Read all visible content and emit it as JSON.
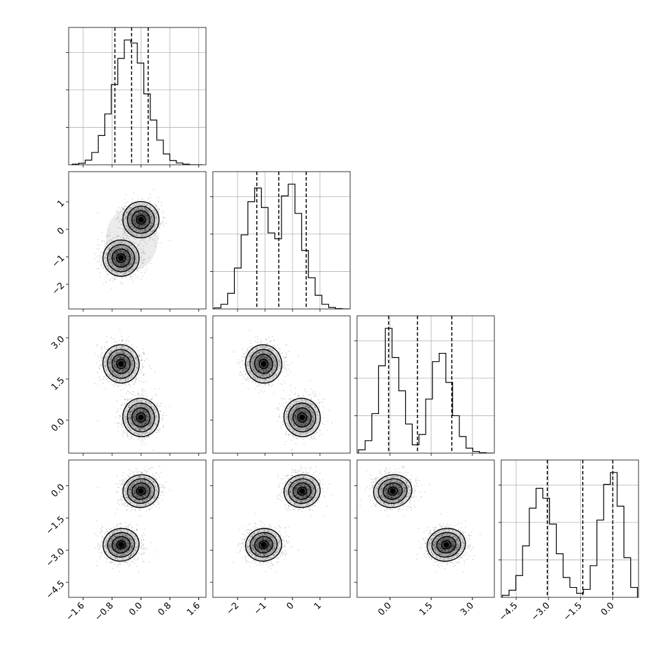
{
  "chart_data": {
    "type": "corner",
    "title": "",
    "parameters": [
      "",
      "",
      "",
      ""
    ],
    "ranges": [
      [
        -2.0,
        1.8
      ],
      [
        -2.9,
        2.1
      ],
      [
        -1.2,
        3.8
      ],
      [
        -5.2,
        1.2
      ]
    ],
    "ticks": [
      {
        "values": [
          -1.6,
          -0.8,
          0.0,
          0.8,
          1.6
        ],
        "labels": [
          "−1.6",
          "−0.8",
          "0.0",
          "0.8",
          "1.6"
        ]
      },
      {
        "values": [
          -2,
          -1,
          0,
          1
        ],
        "labels": [
          "−2",
          "−1",
          "0",
          "1"
        ]
      },
      {
        "values": [
          0.0,
          1.5,
          3.0
        ],
        "labels": [
          "0.0",
          "1.5",
          "3.0"
        ]
      },
      {
        "values": [
          -4.5,
          -3.0,
          -1.5,
          0.0
        ],
        "labels": [
          "−4.5",
          "−3.0",
          "−1.5",
          "0.0"
        ]
      }
    ],
    "quantiles": [
      [
        -0.72,
        -0.26,
        0.2
      ],
      [
        -1.3,
        -0.5,
        0.5
      ],
      [
        -0.05,
        1.0,
        2.25
      ],
      [
        -3.05,
        -1.4,
        0.0
      ]
    ],
    "histograms": [
      {
        "param": 0,
        "bin_edges_range": [
          -1.9,
          1.7
        ],
        "bins": 20,
        "counts": [
          2,
          5,
          15,
          40,
          95,
          165,
          260,
          345,
          405,
          395,
          330,
          230,
          145,
          80,
          35,
          14,
          6,
          2,
          0,
          0
        ]
      },
      {
        "param": 1,
        "bin_edges_range": [
          -2.85,
          2.05
        ],
        "bins": 20,
        "counts": [
          3,
          12,
          40,
          105,
          190,
          275,
          310,
          260,
          195,
          180,
          290,
          320,
          245,
          150,
          80,
          35,
          12,
          4,
          1,
          0
        ]
      },
      {
        "param": 2,
        "bin_edges_range": [
          -1.15,
          3.75
        ],
        "bins": 20,
        "counts": [
          8,
          30,
          95,
          210,
          300,
          230,
          150,
          70,
          20,
          45,
          130,
          220,
          240,
          170,
          90,
          40,
          12,
          4,
          1,
          0
        ]
      },
      {
        "param": 3,
        "bin_edges_range": [
          -5.15,
          1.15
        ],
        "bins": 20,
        "counts": [
          5,
          18,
          55,
          130,
          225,
          275,
          250,
          185,
          110,
          50,
          25,
          10,
          20,
          80,
          195,
          285,
          315,
          230,
          100,
          25
        ]
      }
    ],
    "joint_clusters": {
      "components": [
        {
          "mean": [
            -0.0,
            0.35,
            0.1,
            -0.25
          ],
          "sd": [
            0.25,
            0.33,
            0.35,
            0.38
          ],
          "weight": 0.5
        },
        {
          "mean": [
            -0.55,
            -1.05,
            2.05,
            -2.75
          ],
          "sd": [
            0.25,
            0.33,
            0.35,
            0.38
          ],
          "weight": 0.5
        }
      ],
      "contour_levels_sigma": [
        0.5,
        1.0,
        1.5,
        2.0
      ]
    },
    "grid": true
  }
}
